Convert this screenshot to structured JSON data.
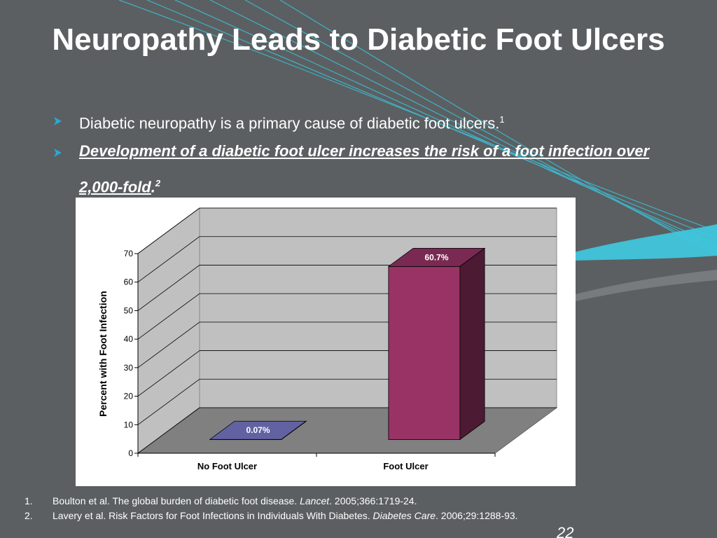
{
  "title": "Neuropathy Leads to Diabetic Foot Ulcers",
  "bullets": [
    {
      "text": "Diabetic neuropathy is a primary cause of diabetic foot ulcers.",
      "ref": "1"
    },
    {
      "text": "Development of a diabetic foot ulcer increases the risk of a foot infection over 2,000-fold",
      "after": ".",
      "ref": "2"
    }
  ],
  "chart_data": {
    "type": "bar3d",
    "ylabel": "Percent with Foot Infection",
    "categories": [
      "No Foot Ulcer",
      "Foot Ulcer"
    ],
    "series": [
      {
        "values": [
          0.07,
          60.7
        ],
        "value_labels": [
          "0.07%",
          "60.7%"
        ],
        "colors": [
          "#7b7bcc",
          "#993366"
        ]
      }
    ],
    "ylim": [
      0,
      70
    ],
    "yticks": [
      0,
      10,
      20,
      30,
      40,
      50,
      60,
      70
    ],
    "grid": true
  },
  "references": [
    {
      "number": "1.",
      "before": "Boulton et al. The global burden of diabetic foot disease.",
      "journal": "Lancet",
      "after": ". 2005;366:1719-24."
    },
    {
      "number": "2.",
      "before": "Lavery et al. Risk Factors for Foot Infections in Individuals With Diabetes.",
      "journal": "Diabetes Care",
      "after": ". 2006;29:1288-93."
    }
  ],
  "page_number": "22"
}
